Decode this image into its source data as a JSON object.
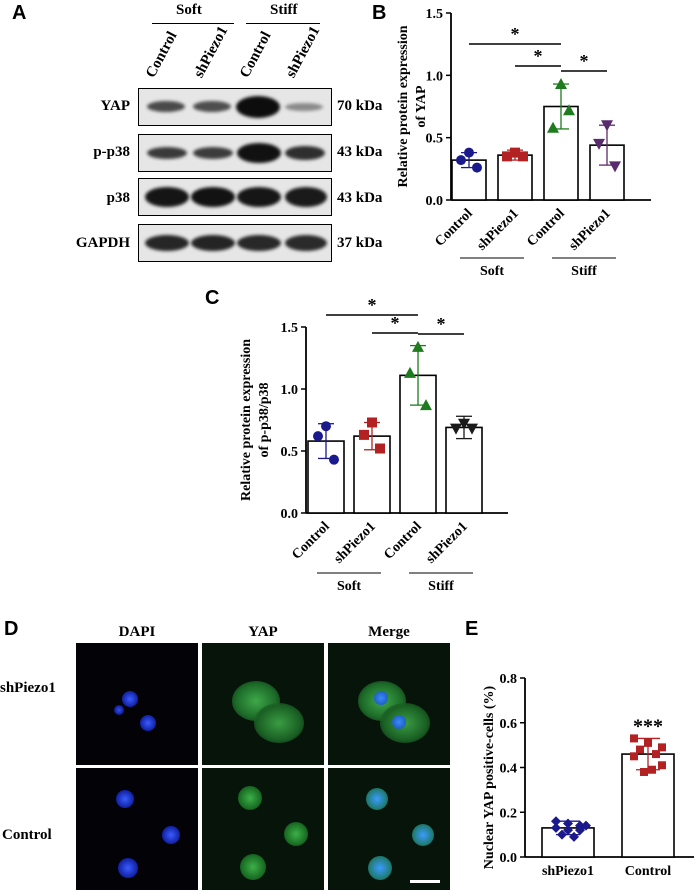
{
  "panels": {
    "a": "A",
    "b": "B",
    "c": "C",
    "d": "D",
    "e": "E"
  },
  "blot": {
    "groups": [
      "Soft",
      "Stiff"
    ],
    "lanes": [
      "Control",
      "shPiezo1",
      "Control",
      "shPiezo1"
    ],
    "rows": [
      {
        "label": "YAP",
        "kda": "70 kDa"
      },
      {
        "label": "p-p38",
        "kda": "43 kDa"
      },
      {
        "label": "p38",
        "kda": "43 kDa"
      },
      {
        "label": "GAPDH",
        "kda": "37 kDa"
      }
    ]
  },
  "microscopy": {
    "columns": [
      "DAPI",
      "YAP",
      "Merge"
    ],
    "rows": [
      "shPiezo1",
      "Control"
    ]
  },
  "chart_data": [
    {
      "type": "bar",
      "panel": "B",
      "ylabel_line1": "Relative protein expression",
      "ylabel_line2": "of  YAP",
      "categories": [
        "Control",
        "shPiezo1",
        "Control",
        "shPiezo1"
      ],
      "groups": [
        "Soft",
        "Stiff"
      ],
      "values": [
        0.32,
        0.36,
        0.75,
        0.44
      ],
      "errors": [
        0.06,
        0.04,
        0.18,
        0.16
      ],
      "points": [
        [
          0.38,
          0.32,
          0.26
        ],
        [
          0.38,
          0.35,
          0.35
        ],
        [
          0.93,
          0.58,
          0.72
        ],
        [
          0.6,
          0.45,
          0.27
        ]
      ],
      "marker_colors": [
        "#1a1a8c",
        "#b22222",
        "#1e7b1e",
        "#5a2a6e"
      ],
      "yticks": [
        "0.0",
        "0.5",
        "1.0",
        "1.5"
      ],
      "ylim": [
        0,
        1.5
      ],
      "significance": [
        {
          "from": 0,
          "to": 2,
          "label": "*"
        },
        {
          "from": 1,
          "to": 2,
          "label": "*"
        },
        {
          "from": 2,
          "to": 3,
          "label": "*"
        }
      ]
    },
    {
      "type": "bar",
      "panel": "C",
      "ylabel_line1": "Relative protein expression",
      "ylabel_line2": "of p-p38/p38",
      "categories": [
        "Control",
        "shPiezo1",
        "Control",
        "shPiezo1"
      ],
      "groups": [
        "Soft",
        "Stiff"
      ],
      "values": [
        0.58,
        0.62,
        1.11,
        0.69
      ],
      "errors": [
        0.14,
        0.11,
        0.24,
        0.09
      ],
      "points": [
        [
          0.7,
          0.62,
          0.43
        ],
        [
          0.73,
          0.63,
          0.52
        ],
        [
          1.34,
          1.13,
          0.87
        ],
        [
          0.72,
          0.68,
          0.68
        ]
      ],
      "marker_colors": [
        "#1a1a8c",
        "#b22222",
        "#1e7b1e",
        "#1a1a1a"
      ],
      "yticks": [
        "0.0",
        "0.5",
        "1.0",
        "1.5"
      ],
      "ylim": [
        0,
        1.5
      ],
      "significance": [
        {
          "from": 0,
          "to": 2,
          "label": "*"
        },
        {
          "from": 1,
          "to": 2,
          "label": "*"
        },
        {
          "from": 2,
          "to": 3,
          "label": "*"
        }
      ]
    },
    {
      "type": "bar",
      "panel": "E",
      "ylabel": "Nuclear YAP positive-cells (%)",
      "categories": [
        "shPiezo1",
        "Control"
      ],
      "values": [
        0.13,
        0.46
      ],
      "errors": [
        0.03,
        0.07
      ],
      "points": [
        [
          0.16,
          0.15,
          0.14,
          0.13,
          0.12,
          0.12,
          0.1,
          0.09,
          0.14
        ],
        [
          0.53,
          0.51,
          0.49,
          0.48,
          0.46,
          0.45,
          0.41,
          0.38,
          0.39
        ]
      ],
      "marker_colors": [
        "#1a1a8c",
        "#b22222"
      ],
      "yticks": [
        "0.0",
        "0.2",
        "0.4",
        "0.6",
        "0.8"
      ],
      "ylim": [
        0,
        0.8
      ],
      "annotation": "***"
    }
  ]
}
